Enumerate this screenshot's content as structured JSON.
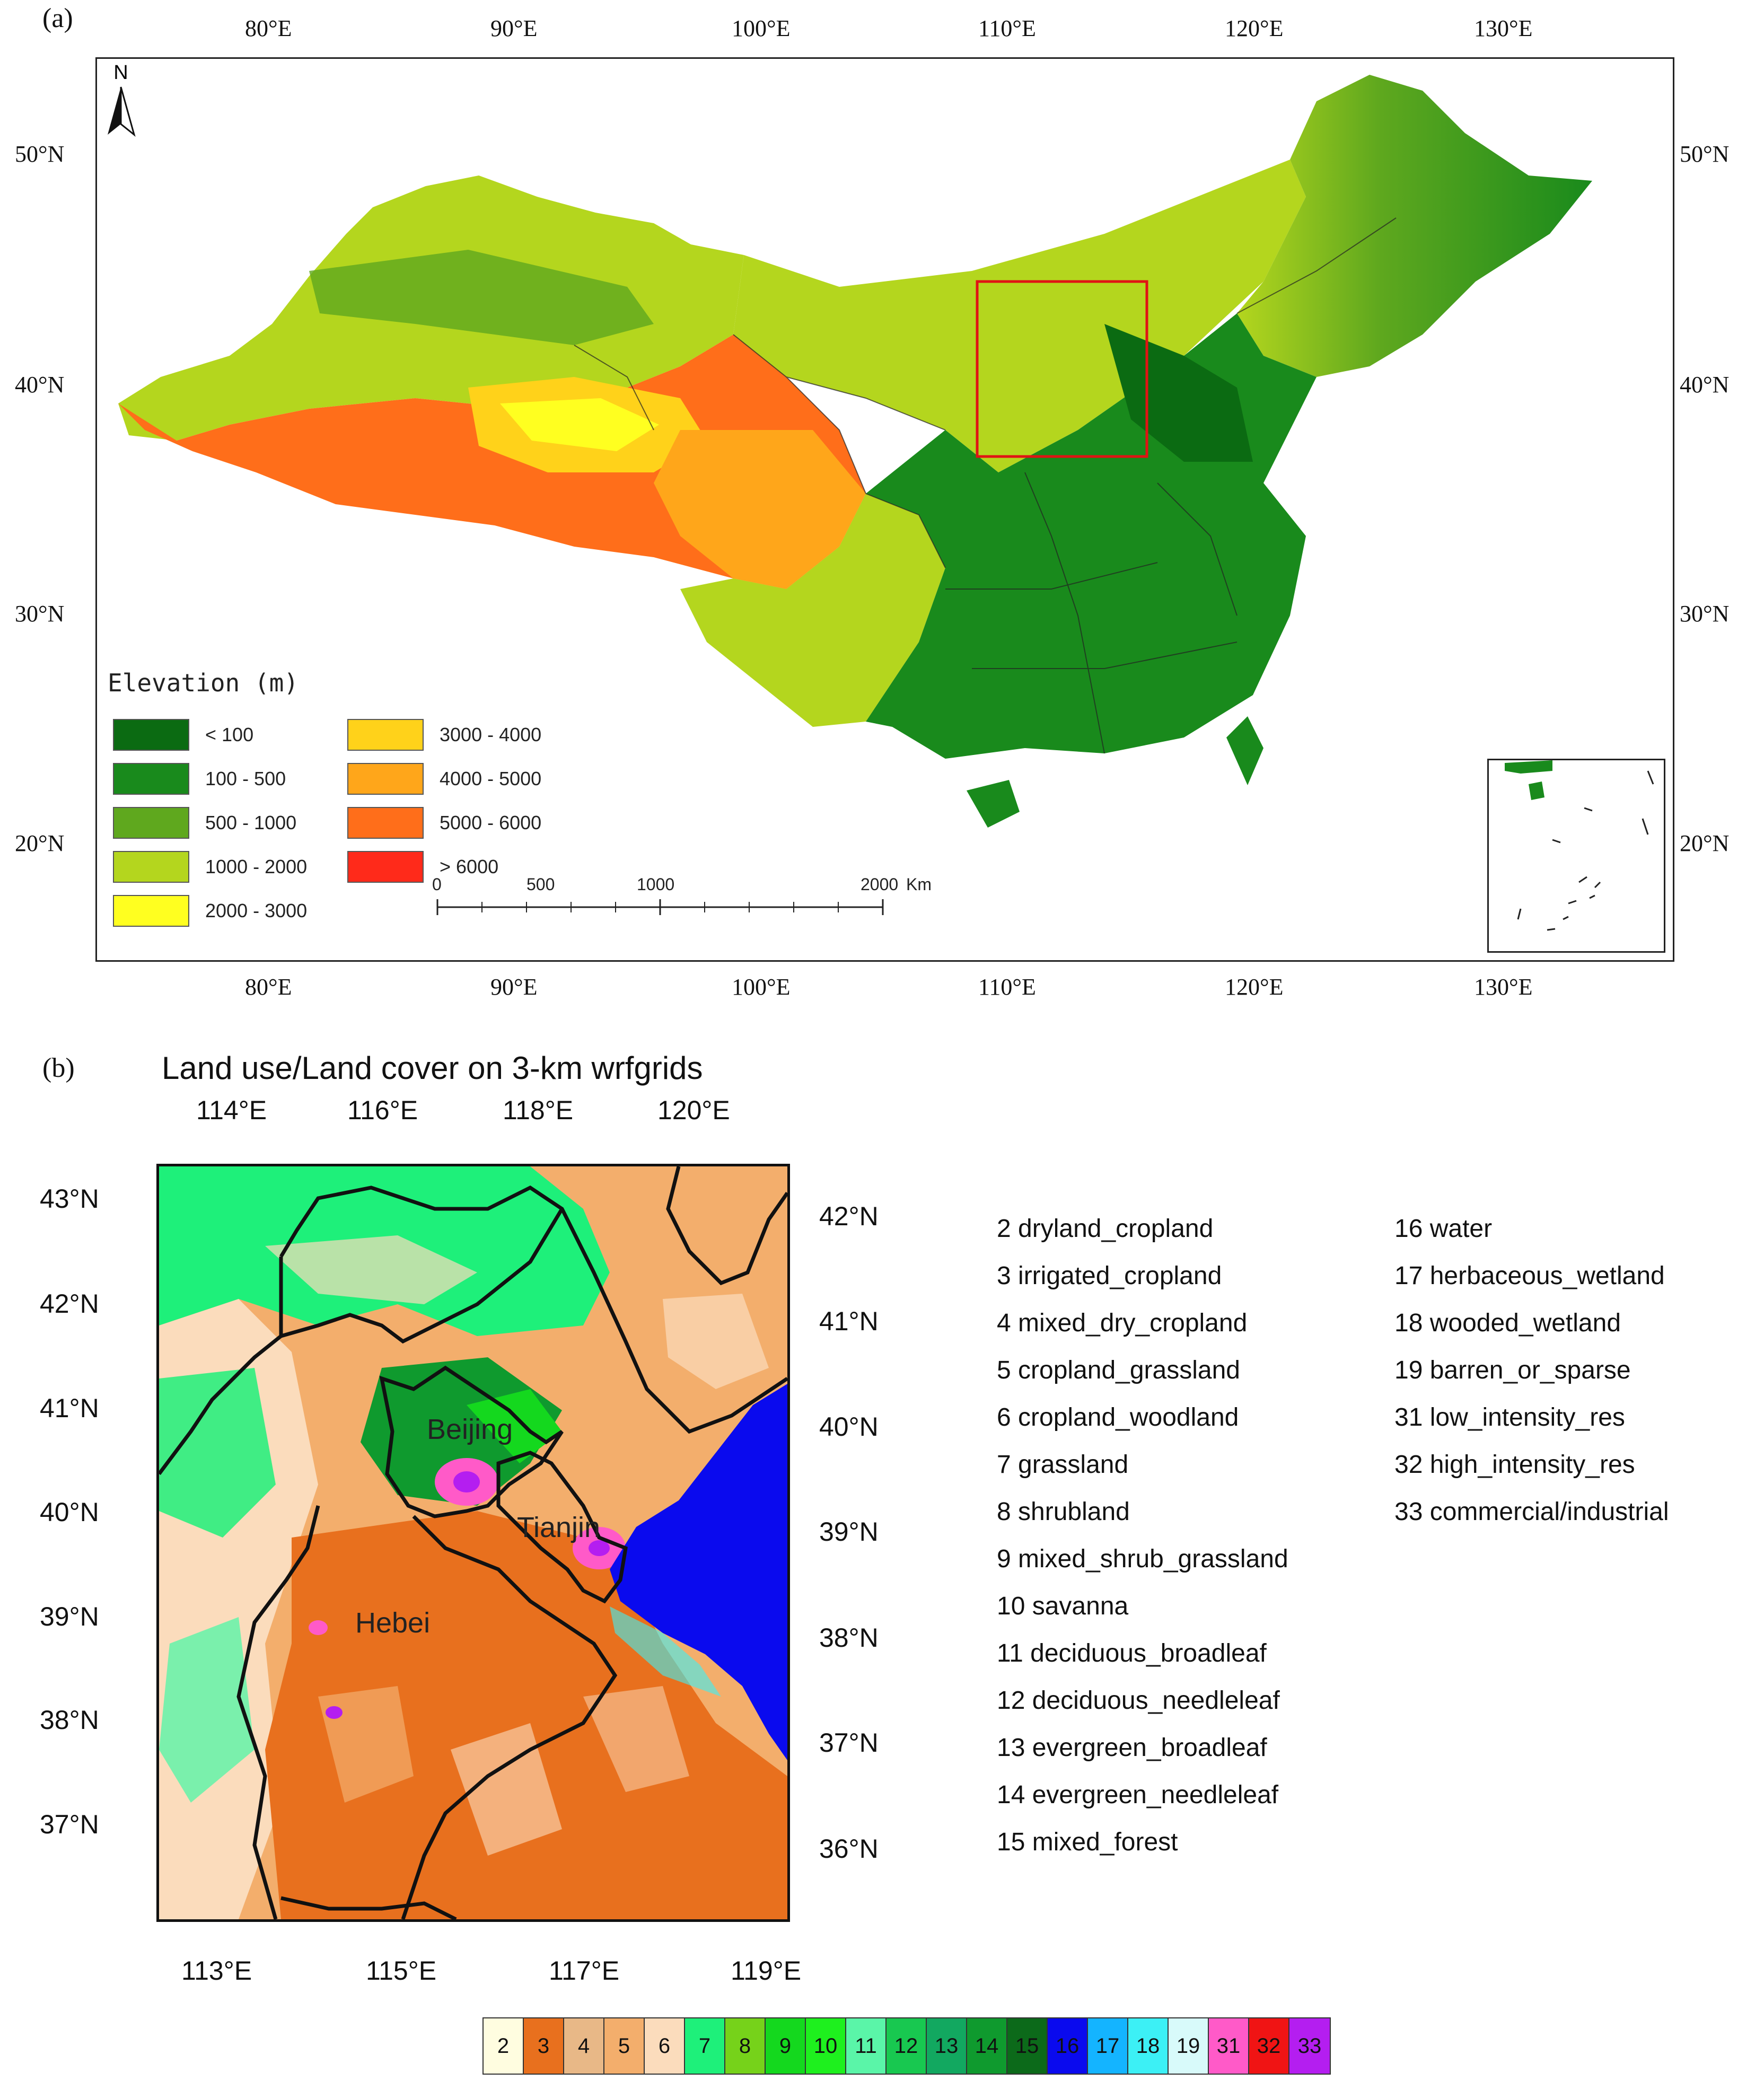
{
  "panel_a": {
    "label": "(a)",
    "lon_ticks": [
      "80°E",
      "90°E",
      "100°E",
      "110°E",
      "120°E",
      "130°E"
    ],
    "lat_ticks": [
      "50°N",
      "40°N",
      "30°N",
      "20°N"
    ],
    "north_label": "N",
    "legend": {
      "title": "Elevation (m)",
      "items": [
        {
          "label": "< 100",
          "color": "#0b6b12"
        },
        {
          "label": "100 - 500",
          "color": "#198a1c"
        },
        {
          "label": "500 - 1000",
          "color": "#5fa81e"
        },
        {
          "label": "1000 - 2000",
          "color": "#b4d61e"
        },
        {
          "label": "2000 - 3000",
          "color": "#ffff20"
        },
        {
          "label": "3000 - 4000",
          "color": "#ffd21a"
        },
        {
          "label": "4000 - 5000",
          "color": "#ffa61a"
        },
        {
          "label": "5000 - 6000",
          "color": "#ff6e1a"
        },
        {
          "label": "> 6000",
          "color": "#ff2a1a"
        }
      ]
    },
    "scalebar": {
      "labels": [
        "0",
        "500",
        "1000",
        "2000"
      ],
      "unit": "Km"
    }
  },
  "panel_b": {
    "label": "(b)",
    "title": "Land use/Land cover on 3-km wrfgrids",
    "top_lon_ticks": [
      "114°E",
      "116°E",
      "118°E",
      "120°E"
    ],
    "bottom_lon_ticks": [
      "113°E",
      "115°E",
      "117°E",
      "119°E"
    ],
    "left_lat_ticks": [
      "43°N",
      "42°N",
      "41°N",
      "40°N",
      "39°N",
      "38°N",
      "37°N"
    ],
    "right_lat_ticks": [
      "42°N",
      "41°N",
      "40°N",
      "39°N",
      "38°N",
      "37°N",
      "36°N"
    ],
    "places": [
      "Beijing",
      "Tianjin",
      "Hebei"
    ],
    "classes_col1": [
      "2 dryland_cropland",
      "3 irrigated_cropland",
      "4 mixed_dry_cropland",
      "5 cropland_grassland",
      "6 cropland_woodland",
      "7 grassland",
      "8 shrubland",
      "9 mixed_shrub_grassland",
      "10 savanna",
      "11 deciduous_broadleaf",
      "12 deciduous_needleleaf",
      "13 evergreen_broadleaf",
      "14 evergreen_needleleaf",
      "15 mixed_forest"
    ],
    "classes_col2": [
      "16 water",
      "17 herbaceous_wetland",
      "18 wooded_wetland",
      "19 barren_or_sparse",
      "31 low_intensity_res",
      "32 high_intensity_res",
      "33 commercial/industrial"
    ],
    "colorbar": [
      {
        "label": "2",
        "color": "#fffde0"
      },
      {
        "label": "3",
        "color": "#e8701e"
      },
      {
        "label": "4",
        "color": "#e8b887"
      },
      {
        "label": "5",
        "color": "#f3ae6c"
      },
      {
        "label": "6",
        "color": "#fbdcbc"
      },
      {
        "label": "7",
        "color": "#1ef07a"
      },
      {
        "label": "8",
        "color": "#76d21a"
      },
      {
        "label": "9",
        "color": "#14d81e"
      },
      {
        "label": "10",
        "color": "#1ef01e"
      },
      {
        "label": "11",
        "color": "#5af5a8"
      },
      {
        "label": "12",
        "color": "#18c850"
      },
      {
        "label": "13",
        "color": "#12a860"
      },
      {
        "label": "14",
        "color": "#0f9a2e"
      },
      {
        "label": "15",
        "color": "#0c6a1a"
      },
      {
        "label": "16",
        "color": "#0a0aee"
      },
      {
        "label": "17",
        "color": "#14b4ff"
      },
      {
        "label": "18",
        "color": "#3cf0f5"
      },
      {
        "label": "19",
        "color": "#d8fafa"
      },
      {
        "label": "31",
        "color": "#ff5ac8"
      },
      {
        "label": "32",
        "color": "#f01414"
      },
      {
        "label": "33",
        "color": "#b41ef0"
      }
    ]
  }
}
